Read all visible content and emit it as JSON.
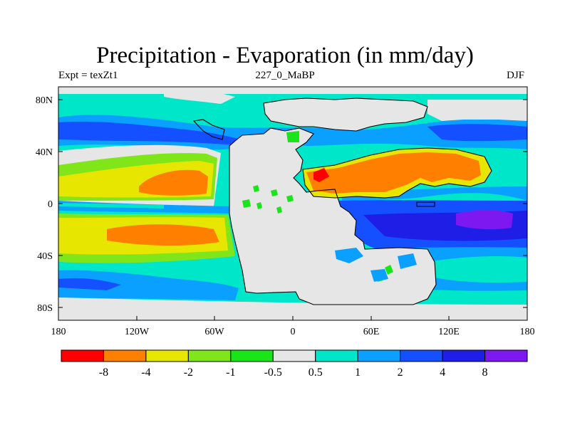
{
  "title": "Precipitation - Evaporation (in mm/day)",
  "left_string": "Expt = texZt1",
  "center_string": "227_0_MaBP",
  "right_string": "DJF",
  "lat_labels": [
    "80N",
    "40N",
    "0",
    "40S",
    "80S"
  ],
  "lon_labels": [
    "180",
    "120W",
    "60W",
    "0",
    "60E",
    "120E",
    "180"
  ],
  "colorbar": {
    "labels": [
      "-8",
      "-4",
      "-2",
      "-1",
      "-0.5",
      "0.5",
      "1",
      "2",
      "4",
      "8"
    ],
    "colors": [
      "#ff0000",
      "#ff7f00",
      "#e6e600",
      "#80e619",
      "#19e619",
      "#e6e6e6",
      "#00e6c8",
      "#0aa0ff",
      "#1450ff",
      "#1e1ee6",
      "#7d19f0"
    ]
  },
  "palette": {
    "neg8": "#ff0000",
    "neg4": "#ff7f00",
    "neg2": "#e6e600",
    "neg1": "#80e619",
    "neg05": "#19e619",
    "zero": "#e6e6e6",
    "pos05": "#00e6c8",
    "pos1": "#0aa0ff",
    "pos2": "#1450ff",
    "pos4": "#1e1ee6",
    "pos8": "#7d19f0"
  }
}
